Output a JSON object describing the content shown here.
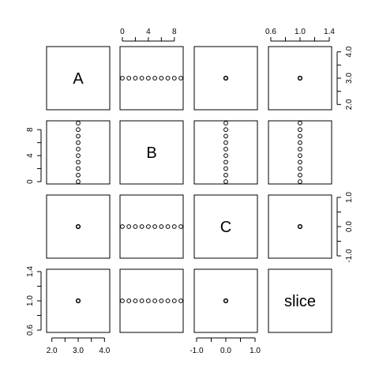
{
  "chart_data": {
    "type": "scatter",
    "kind": "pairs-matrix",
    "variables": [
      "A",
      "B",
      "C",
      "slice"
    ],
    "values": {
      "A": [
        3,
        3,
        3,
        3,
        3,
        3,
        3,
        3,
        3,
        3
      ],
      "B": [
        0,
        1,
        2,
        3,
        4,
        5,
        6,
        7,
        8,
        9
      ],
      "C": [
        0,
        0,
        0,
        0,
        0,
        0,
        0,
        0,
        0,
        0
      ],
      "slice": [
        1,
        1,
        1,
        1,
        1,
        1,
        1,
        1,
        1,
        1
      ]
    },
    "axes": {
      "A": {
        "range": [
          1.8,
          4.2
        ],
        "ticks": [
          2.0,
          3.0,
          4.0
        ],
        "labels": [
          "2.0",
          "3.0",
          "4.0"
        ],
        "minor": [
          2.5,
          3.5
        ]
      },
      "B": {
        "range": [
          -0.36,
          9.36
        ],
        "ticks": [
          0,
          4,
          8
        ],
        "labels": [
          "0",
          "4",
          "8"
        ],
        "minor": [
          2,
          6
        ]
      },
      "C": {
        "range": [
          -1.08,
          1.08
        ],
        "ticks": [
          -1.0,
          0.0,
          1.0
        ],
        "labels": [
          "-1.0",
          "0.0",
          "1.0"
        ],
        "minor": [
          -0.5,
          0.5
        ]
      },
      "slice": {
        "range": [
          0.568,
          1.432
        ],
        "ticks": [
          0.6,
          1.0,
          1.4
        ],
        "labels": [
          "0.6",
          "1.0",
          "1.4"
        ],
        "minor": [
          0.8,
          1.2
        ]
      }
    },
    "grid": false,
    "legend": "none"
  }
}
